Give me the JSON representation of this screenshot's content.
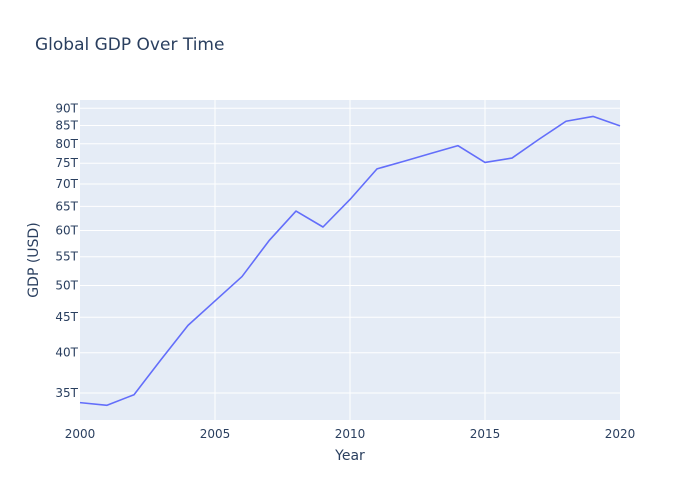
{
  "chart_data": {
    "type": "line",
    "title": "Global GDP Over Time",
    "xlabel": "Year",
    "ylabel": "GDP (USD)",
    "y_scale": "log",
    "xlim": [
      2000,
      2020
    ],
    "ylim": [
      32000000000000.0,
      92500000000000.0
    ],
    "grid": true,
    "x_ticks": [
      2000,
      2005,
      2010,
      2015,
      2020
    ],
    "x_tick_labels": [
      "2000",
      "2005",
      "2010",
      "2015",
      "2020"
    ],
    "y_ticks": [
      35000000000000.0,
      40000000000000.0,
      45000000000000.0,
      50000000000000.0,
      55000000000000.0,
      60000000000000.0,
      65000000000000.0,
      70000000000000.0,
      75000000000000.0,
      80000000000000.0,
      85000000000000.0,
      90000000000000.0
    ],
    "y_tick_labels": [
      "35T",
      "40T",
      "45T",
      "50T",
      "55T",
      "60T",
      "65T",
      "70T",
      "75T",
      "80T",
      "85T",
      "90T"
    ],
    "colors": {
      "line": "#636efa",
      "plot_bg": "#e5ecf6",
      "grid": "#ffffff",
      "text": "#2a3f5f"
    },
    "series": [
      {
        "x": [
          2000,
          2001,
          2002,
          2003,
          2004,
          2005,
          2006,
          2007,
          2008,
          2009,
          2010,
          2011,
          2012,
          2013,
          2014,
          2015,
          2016,
          2017,
          2018,
          2019,
          2020
        ],
        "y": [
          33900000000000.0,
          33600000000000.0,
          34800000000000.0,
          39100000000000.0,
          43800000000000.0,
          47500000000000.0,
          51500000000000.0,
          58000000000000.0,
          64000000000000.0,
          60700000000000.0,
          66500000000000.0,
          73600000000000.0,
          75500000000000.0,
          77500000000000.0,
          79500000000000.0,
          75200000000000.0,
          76300000000000.0,
          81200000000000.0,
          86200000000000.0,
          87600000000000.0,
          84900000000000.0
        ]
      }
    ]
  }
}
